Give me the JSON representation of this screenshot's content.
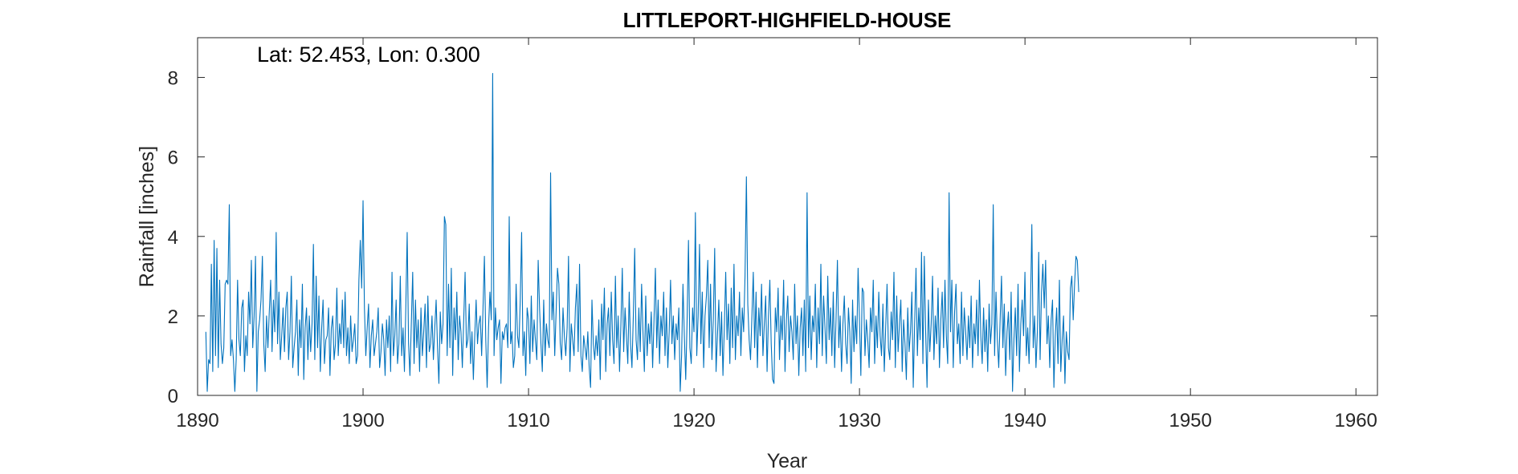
{
  "chart_data": {
    "type": "line",
    "title": "LITTLEPORT-HIGHFIELD-HOUSE",
    "annotation": "Lat: 52.453, Lon: 0.300",
    "xlabel": "Year",
    "ylabel": "Rainfall [inches]",
    "xlim": [
      1890,
      1961.3
    ],
    "ylim": [
      0,
      9
    ],
    "x_ticks": [
      1890,
      1900,
      1910,
      1920,
      1930,
      1940,
      1950,
      1960
    ],
    "y_ticks": [
      0,
      2,
      4,
      6,
      8
    ],
    "grid": false,
    "series_color": "#0072BD",
    "series": [
      {
        "start_year": 1890.5,
        "step_years": 0.08333,
        "values": [
          1.6,
          0.1,
          0.9,
          0.8,
          3.3,
          0.6,
          3.9,
          1.0,
          3.7,
          0.7,
          2.9,
          1.3,
          0.8,
          1.2,
          2.8,
          2.9,
          2.8,
          4.8,
          1.0,
          1.4,
          0.9,
          0.1,
          0.9,
          2.9,
          1.4,
          1.0,
          2.2,
          2.4,
          0.6,
          1.5,
          1.0,
          2.6,
          1.8,
          3.4,
          1.2,
          2.0,
          3.5,
          0.1,
          1.6,
          1.9,
          2.4,
          3.5,
          1.3,
          0.6,
          2.0,
          1.2,
          2.1,
          2.9,
          1.1,
          2.4,
          1.6,
          4.1,
          1.3,
          2.6,
          0.9,
          1.5,
          2.2,
          1.1,
          2.2,
          2.6,
          0.9,
          1.6,
          3.0,
          0.7,
          1.2,
          1.6,
          2.4,
          0.5,
          1.9,
          1.2,
          2.8,
          0.4,
          1.7,
          2.2,
          0.9,
          2.0,
          1.1,
          1.8,
          3.8,
          0.9,
          3.0,
          1.2,
          2.5,
          0.6,
          1.7,
          2.4,
          0.8,
          1.4,
          1.5,
          2.2,
          0.5,
          1.7,
          2.0,
          0.9,
          1.3,
          2.7,
          1.0,
          1.8,
          1.3,
          2.4,
          1.2,
          2.6,
          1.0,
          1.7,
          0.8,
          2.0,
          1.1,
          1.4,
          1.8,
          0.8,
          1.0,
          2.9,
          3.9,
          2.7,
          4.9,
          2.2,
          1.0,
          1.7,
          2.3,
          0.7,
          1.5,
          1.9,
          1.0,
          1.3,
          1.6,
          2.2,
          0.7,
          1.1,
          1.8,
          1.4,
          0.5,
          1.9,
          1.2,
          2.0,
          0.6,
          3.1,
          1.0,
          1.5,
          2.4,
          0.8,
          1.3,
          3.0,
          1.0,
          1.7,
          0.6,
          2.2,
          4.1,
          1.3,
          0.5,
          1.8,
          3.1,
          0.8,
          2.4,
          1.2,
          1.9,
          0.6,
          2.2,
          1.0,
          1.6,
          2.3,
          0.7,
          2.5,
          1.1,
          1.3,
          2.0,
          0.9,
          1.7,
          2.4,
          1.2,
          0.3,
          2.1,
          1.3,
          1.8,
          4.5,
          4.3,
          1.0,
          2.8,
          1.2,
          3.2,
          0.5,
          2.2,
          1.4,
          2.6,
          0.9,
          2.0,
          1.6,
          0.7,
          1.9,
          3.1,
          1.2,
          1.4,
          2.3,
          0.8,
          1.6,
          0.4,
          1.5,
          2.4,
          1.3,
          1.8,
          2.0,
          1.0,
          2.2,
          3.5,
          1.4,
          0.2,
          1.7,
          2.6,
          1.9,
          8.1,
          1.0,
          2.2,
          1.4,
          1.7,
          1.9,
          0.3,
          1.6,
          1.4,
          1.7,
          1.8,
          1.2,
          4.5,
          1.3,
          1.6,
          0.7,
          1.0,
          2.8,
          1.5,
          1.2,
          2.4,
          4.1,
          1.0,
          1.6,
          0.5,
          2.2,
          1.9,
          0.8,
          2.5,
          1.1,
          1.9,
          1.4,
          0.9,
          3.4,
          2.2,
          1.3,
          0.6,
          2.4,
          1.0,
          1.8,
          1.4,
          1.2,
          5.6,
          1.9,
          2.6,
          1.0,
          2.1,
          3.2,
          2.8,
          1.3,
          0.9,
          2.2,
          1.5,
          1.0,
          1.7,
          3.5,
          0.6,
          1.8,
          1.4,
          1.0,
          2.2,
          2.8,
          1.1,
          3.3,
          1.0,
          0.6,
          1.5,
          1.2,
          0.9,
          1.6,
          0.7,
          0.2,
          2.4,
          1.3,
          0.9,
          1.5,
          1.0,
          1.9,
          0.4,
          2.3,
          1.4,
          2.7,
          0.6,
          1.8,
          2.2,
          1.0,
          2.6,
          1.4,
          0.8,
          3.0,
          1.2,
          2.0,
          0.6,
          1.8,
          3.2,
          1.1,
          2.2,
          1.5,
          0.8,
          2.6,
          1.3,
          0.7,
          2.0,
          3.7,
          1.4,
          0.9,
          2.2,
          1.1,
          2.8,
          1.6,
          0.6,
          2.5,
          1.0,
          1.8,
          1.3,
          2.1,
          0.7,
          1.9,
          3.2,
          1.2,
          2.4,
          0.8,
          2.0,
          1.5,
          2.6,
          1.0,
          2.2,
          0.7,
          1.6,
          2.9,
          1.3,
          2.0,
          0.9,
          1.8,
          1.4,
          2.2,
          0.1,
          1.0,
          2.8,
          1.5,
          0.4,
          1.9,
          3.9,
          1.2,
          0.8,
          2.2,
          1.6,
          4.6,
          1.0,
          2.0,
          3.8,
          1.3,
          2.6,
          0.7,
          2.0,
          2.5,
          3.4,
          1.2,
          2.8,
          0.9,
          1.9,
          3.7,
          0.6,
          1.5,
          2.4,
          1.0,
          2.1,
          0.5,
          1.7,
          3.1,
          1.4,
          2.3,
          0.8,
          2.7,
          1.2,
          3.3,
          0.9,
          2.0,
          1.5,
          2.6,
          1.0,
          2.2,
          1.6,
          3.0,
          5.5,
          2.3,
          1.4,
          0.9,
          2.0,
          3.1,
          1.2,
          2.6,
          0.7,
          2.2,
          1.5,
          2.8,
          1.0,
          1.8,
          2.5,
          0.6,
          2.0,
          2.9,
          1.3,
          0.4,
          0.3,
          2.2,
          1.6,
          2.7,
          0.9,
          2.0,
          1.4,
          2.9,
          0.6,
          1.9,
          2.5,
          1.1,
          2.0,
          1.6,
          0.9,
          2.8,
          1.3,
          2.0,
          0.5,
          1.7,
          2.2,
          1.0,
          2.4,
          0.6,
          5.1,
          1.2,
          2.5,
          0.9,
          2.0,
          1.6,
          2.8,
          0.7,
          2.2,
          1.3,
          3.3,
          1.0,
          2.5,
          1.7,
          0.8,
          3.0,
          1.4,
          2.2,
          1.0,
          2.6,
          0.7,
          1.9,
          3.4,
          1.2,
          2.0,
          0.6,
          1.8,
          2.5,
          1.3,
          0.8,
          2.2,
          1.6,
          0.3,
          2.4,
          1.1,
          2.0,
          1.3,
          3.2,
          1.9,
          0.5,
          2.7,
          2.6,
          1.0,
          1.9,
          1.4,
          0.7,
          2.2,
          1.6,
          2.9,
          0.8,
          2.0,
          1.2,
          2.6,
          1.5,
          1.0,
          2.3,
          0.6,
          1.7,
          2.8,
          1.2,
          0.9,
          2.1,
          1.4,
          3.1,
          0.7,
          2.5,
          1.1,
          1.8,
          2.4,
          0.6,
          1.9,
          1.3,
          0.4,
          2.2,
          1.1,
          1.6,
          2.6,
          0.2,
          1.8,
          3.2,
          1.0,
          2.2,
          1.4,
          3.6,
          0.8,
          3.5,
          1.6,
          0.2,
          2.4,
          1.1,
          1.8,
          3.0,
          0.9,
          2.0,
          1.3,
          2.7,
          0.7,
          1.9,
          2.6,
          1.2,
          2.9,
          1.5,
          0.8,
          5.1,
          1.6,
          2.9,
          0.7,
          2.1,
          2.8,
          1.3,
          1.8,
          0.8,
          2.6,
          1.0,
          2.2,
          1.6,
          0.9,
          2.0,
          1.2,
          2.5,
          0.7,
          1.8,
          1.3,
          2.4,
          1.0,
          2.9,
          1.5,
          0.8,
          2.2,
          1.1,
          1.9,
          0.6,
          2.3,
          1.3,
          1.8,
          4.8,
          1.0,
          2.6,
          1.4,
          0.7,
          1.9,
          3.0,
          1.2,
          2.3,
          0.5,
          1.6,
          2.1,
          0.9,
          2.6,
          0.1,
          1.4,
          2.2,
          1.0,
          2.8,
          0.6,
          1.8,
          2.4,
          1.5,
          3.1,
          1.0,
          1.7,
          0.8,
          2.2,
          4.3,
          1.2,
          2.0,
          0.7,
          1.6,
          3.6,
          0.9,
          2.6,
          3.3,
          2.2,
          3.4,
          1.3,
          2.0,
          0.7,
          1.9,
          2.4,
          0.2,
          1.5,
          2.2,
          0.8,
          2.9,
          0.6,
          1.4,
          2.0,
          0.3,
          1.6,
          1.1,
          0.9,
          2.7,
          3.0,
          1.9,
          2.8,
          3.5,
          3.4,
          2.6
        ]
      }
    ]
  }
}
